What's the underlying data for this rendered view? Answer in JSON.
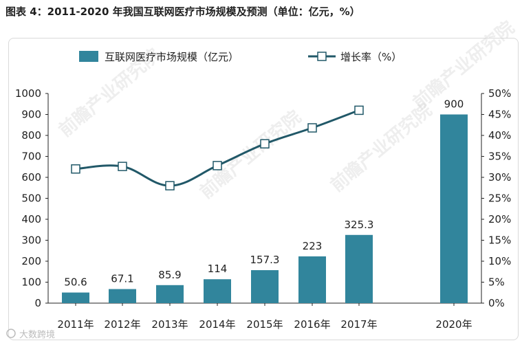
{
  "title": "图表 4：2011-2020 年我国互联网医疗市场规模及预测（单位：亿元，%）",
  "colors": {
    "bar": "#31859c",
    "line": "#215868",
    "marker_fill": "#ffffff"
  },
  "chart_data": {
    "type": "bar",
    "categories": [
      "2011年",
      "2012年",
      "2013年",
      "2014年",
      "2015年",
      "2016年",
      "2017年",
      "2020年"
    ],
    "series": [
      {
        "name": "互联网医疗市场规模（亿元）",
        "type": "bar",
        "axis": "left",
        "values": [
          50.6,
          67.1,
          85.9,
          114,
          157.3,
          223,
          325.3,
          900
        ],
        "labels": [
          "50.6",
          "67.1",
          "85.9",
          "114",
          "157.3",
          "223",
          "325.3",
          "900"
        ]
      },
      {
        "name": "增长率（%）",
        "type": "line",
        "axis": "right",
        "values": [
          32.0,
          32.6,
          28.0,
          32.8,
          38.0,
          41.8,
          46.0,
          null
        ]
      }
    ],
    "ylim_left": [
      0,
      1000
    ],
    "yticks_left": [
      "0",
      "100",
      "200",
      "300",
      "400",
      "500",
      "600",
      "700",
      "800",
      "900",
      "1000"
    ],
    "ylim_right": [
      0,
      50
    ],
    "yticks_right": [
      "0%",
      "5%",
      "10%",
      "15%",
      "20%",
      "25%",
      "30%",
      "35%",
      "40%",
      "45%",
      "50%"
    ],
    "legend": "top",
    "grid": false
  },
  "watermark": [
    "前瞻产业研究院",
    "前瞻产业研究院",
    "前瞻产业研究院",
    "前瞻产业研究院"
  ],
  "footer_logo": "大数跨境"
}
